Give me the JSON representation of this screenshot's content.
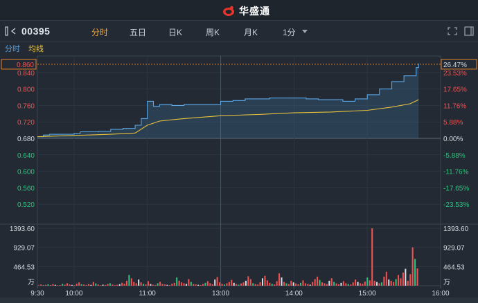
{
  "header": {
    "brand_name": "华盛通"
  },
  "toolbar": {
    "symbol": "00395",
    "periods": [
      "分时",
      "五日",
      "日K",
      "周K",
      "月K",
      "1分"
    ],
    "active_period": "分时"
  },
  "legend": {
    "price_label": "分时",
    "avg_label": "均线"
  },
  "colors": {
    "background": "#232a33",
    "price_line": "#5aa6e6",
    "avg_line": "#e8c23a",
    "up": "#f05252",
    "down": "#2ec27e",
    "neutral": "#d7dde4",
    "current_marker": "#e8832a"
  },
  "chart_data": {
    "type": "line",
    "prev_close": 0.68,
    "current_price": 0.86,
    "current_change_pct": "26.47%",
    "price_ticks": [
      "0.860",
      "0.840",
      "0.800",
      "0.760",
      "0.720",
      "0.680",
      "0.640",
      "0.600",
      "0.560",
      "0.520"
    ],
    "pct_ticks": [
      "26.47%",
      "23.53%",
      "17.65%",
      "11.76%",
      "5.88%",
      "0.00%",
      "-5.88%",
      "-11.76%",
      "-17.65%",
      "-23.53%"
    ],
    "volume_ticks": [
      "1393.60",
      "929.07",
      "464.53"
    ],
    "volume_unit": "万",
    "time_labels": [
      "9:30",
      "10:00",
      "11:00",
      "13:00",
      "14:00",
      "15:00",
      "16:00"
    ],
    "price_series": {
      "name": "分时",
      "points": [
        [
          "9:30",
          0.684
        ],
        [
          "9:35",
          0.688
        ],
        [
          "9:40",
          0.69
        ],
        [
          "9:50",
          0.69
        ],
        [
          "10:00",
          0.692
        ],
        [
          "10:05",
          0.696
        ],
        [
          "10:20",
          0.697
        ],
        [
          "10:30",
          0.702
        ],
        [
          "10:40",
          0.704
        ],
        [
          "10:50",
          0.712
        ],
        [
          "10:55",
          0.728
        ],
        [
          "11:00",
          0.77
        ],
        [
          "11:05",
          0.758
        ],
        [
          "11:10",
          0.762
        ],
        [
          "11:20",
          0.76
        ],
        [
          "11:30",
          0.762
        ],
        [
          "13:00",
          0.77
        ],
        [
          "13:10",
          0.772
        ],
        [
          "13:20",
          0.776
        ],
        [
          "13:30",
          0.776
        ],
        [
          "13:40",
          0.778
        ],
        [
          "13:50",
          0.778
        ],
        [
          "14:00",
          0.778
        ],
        [
          "14:10",
          0.776
        ],
        [
          "14:20",
          0.774
        ],
        [
          "14:30",
          0.774
        ],
        [
          "14:40",
          0.77
        ],
        [
          "14:50",
          0.776
        ],
        [
          "15:00",
          0.786
        ],
        [
          "15:10",
          0.8
        ],
        [
          "15:20",
          0.818
        ],
        [
          "15:30",
          0.832
        ],
        [
          "15:40",
          0.852
        ],
        [
          "15:42",
          0.862
        ]
      ]
    },
    "avg_series": {
      "name": "均线",
      "points": [
        [
          "9:30",
          0.684
        ],
        [
          "10:00",
          0.687
        ],
        [
          "10:30",
          0.69
        ],
        [
          "10:50",
          0.693
        ],
        [
          "11:00",
          0.712
        ],
        [
          "11:10",
          0.722
        ],
        [
          "11:30",
          0.728
        ],
        [
          "13:00",
          0.735
        ],
        [
          "13:30",
          0.738
        ],
        [
          "14:00",
          0.742
        ],
        [
          "14:30",
          0.744
        ],
        [
          "15:00",
          0.748
        ],
        [
          "15:20",
          0.756
        ],
        [
          "15:35",
          0.764
        ],
        [
          "15:42",
          0.774
        ]
      ]
    },
    "volume_series": {
      "name": "成交量",
      "values": [
        12,
        30,
        8,
        20,
        35,
        18,
        40,
        22,
        10,
        15,
        45,
        25,
        60,
        30,
        20,
        12,
        50,
        80,
        35,
        28,
        18,
        40,
        22,
        90,
        55,
        30,
        12,
        25,
        18,
        40,
        60,
        28,
        15,
        22,
        35,
        70,
        48,
        120,
        260,
        180,
        90,
        60,
        150,
        80,
        45,
        30,
        110,
        40,
        25,
        18,
        60,
        95,
        40,
        30,
        22,
        15,
        50,
        70,
        200,
        120,
        80,
        60,
        45,
        160,
        90,
        40,
        30,
        22,
        18,
        40,
        70,
        110,
        60,
        35,
        150,
        210,
        80,
        45,
        30,
        60,
        90,
        140,
        70,
        40,
        25,
        55,
        80,
        120,
        230,
        160,
        60,
        40,
        30,
        85,
        180,
        240,
        130,
        70,
        45,
        30,
        110,
        300,
        200,
        90,
        60,
        40,
        120,
        80,
        55,
        35,
        70,
        130,
        60,
        40,
        25,
        90,
        160,
        220,
        140,
        80,
        60,
        40,
        120,
        180,
        90,
        55,
        35,
        70,
        110,
        60,
        40,
        30,
        80,
        150,
        90,
        60,
        45,
        100,
        200,
        130,
        1393,
        120,
        90,
        60,
        80,
        220,
        340,
        150,
        120,
        90,
        160,
        260,
        180,
        320,
        410,
        120,
        280,
        930,
        650,
        420
      ],
      "up_pattern": [
        1,
        1,
        0,
        1,
        2,
        1,
        1,
        0,
        1,
        1,
        2,
        1,
        1,
        1,
        0,
        1,
        1,
        1,
        2,
        1
      ]
    }
  }
}
